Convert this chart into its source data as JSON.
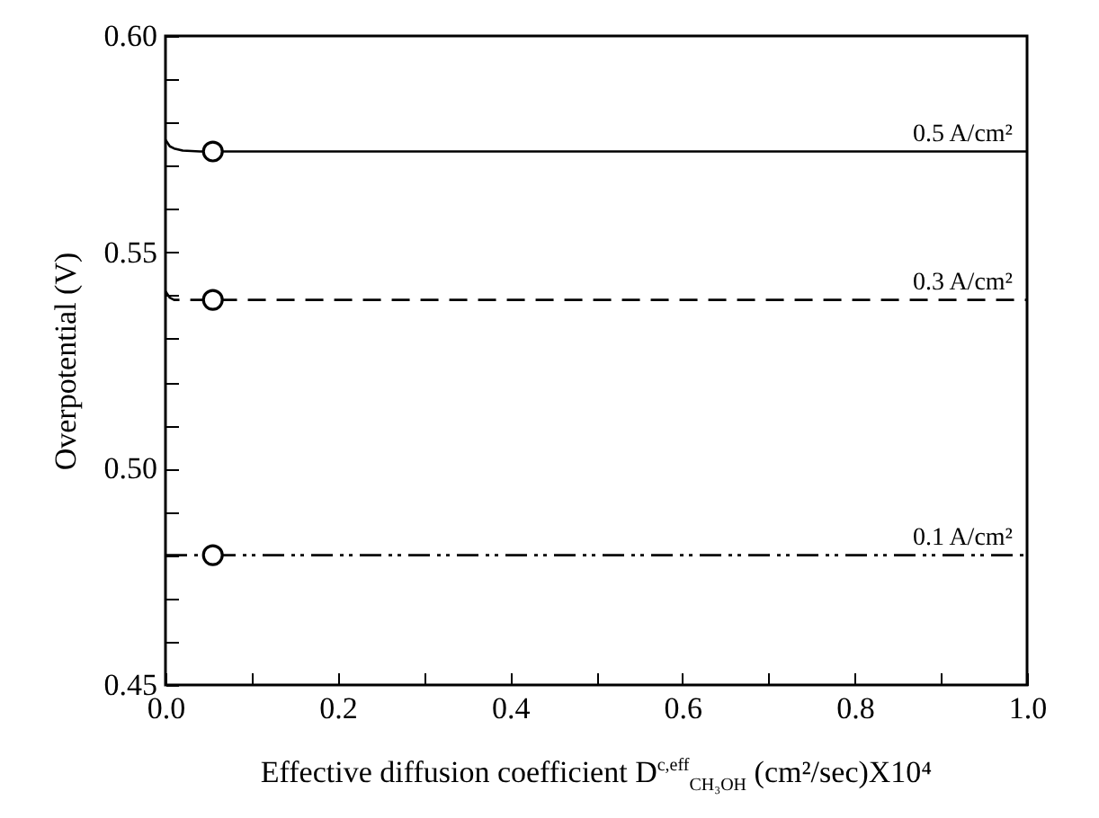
{
  "chart_data": {
    "type": "line",
    "xlabel": "Effective diffusion coefficient D$^{c,eff}$$_{CH₃OH}$  (cm²/sec)X10⁴",
    "ylabel": "Overpotential (V)",
    "xlim": [
      0,
      1
    ],
    "ylim": [
      0.45,
      0.6
    ],
    "xticks": [
      {
        "value": 0,
        "label": "0.0"
      },
      {
        "value": 0.1,
        "label": null
      },
      {
        "value": 0.2,
        "label": "0.2"
      },
      {
        "value": 0.3,
        "label": null
      },
      {
        "value": 0.4,
        "label": "0.4"
      },
      {
        "value": 0.5,
        "label": null
      },
      {
        "value": 0.6,
        "label": "0.6"
      },
      {
        "value": 0.7,
        "label": null
      },
      {
        "value": 0.8,
        "label": "0.8"
      },
      {
        "value": 0.9,
        "label": null
      },
      {
        "value": 1,
        "label": "1.0"
      }
    ],
    "yticks": [
      {
        "value": 0.45,
        "label": "0.45"
      },
      {
        "value": 0.46,
        "label": null
      },
      {
        "value": 0.47,
        "label": null
      },
      {
        "value": 0.48,
        "label": null
      },
      {
        "value": 0.49,
        "label": null
      },
      {
        "value": 0.5,
        "label": "0.50"
      },
      {
        "value": 0.51,
        "label": null
      },
      {
        "value": 0.52,
        "label": null
      },
      {
        "value": 0.53,
        "label": null
      },
      {
        "value": 0.54,
        "label": null
      },
      {
        "value": 0.55,
        "label": "0.55"
      },
      {
        "value": 0.56,
        "label": null
      },
      {
        "value": 0.57,
        "label": null
      },
      {
        "value": 0.58,
        "label": null
      },
      {
        "value": 0.59,
        "label": null
      },
      {
        "value": 0.6,
        "label": "0.60"
      }
    ],
    "series": [
      {
        "name": "0.5 A/cm²",
        "color": "#000000",
        "line_style": "solid",
        "x": [
          0,
          0.005,
          0.01,
          0.02,
          0.04,
          0.055,
          1
        ],
        "values": [
          0.576,
          0.5745,
          0.574,
          0.5735,
          0.5733,
          0.5733,
          0.5733
        ]
      },
      {
        "name": "0.3 A/cm²",
        "color": "#000000",
        "line_style": "dashed",
        "x": [
          0,
          0.005,
          0.01,
          0.02,
          0.04,
          0.055,
          1
        ],
        "values": [
          0.541,
          0.5395,
          0.539,
          0.539,
          0.539,
          0.539,
          0.539
        ]
      },
      {
        "name": "0.1 A/cm²",
        "color": "#000000",
        "line_style": "dashdotdot",
        "x": [
          0,
          0.055,
          1
        ],
        "values": [
          0.48,
          0.48,
          0.48
        ]
      },
      {
        "type": "scatter",
        "marker": "circle",
        "color": "#000000",
        "x": [
          0.055,
          0.055,
          0.055
        ],
        "values": [
          0.5733,
          0.539,
          0.48
        ]
      }
    ]
  }
}
